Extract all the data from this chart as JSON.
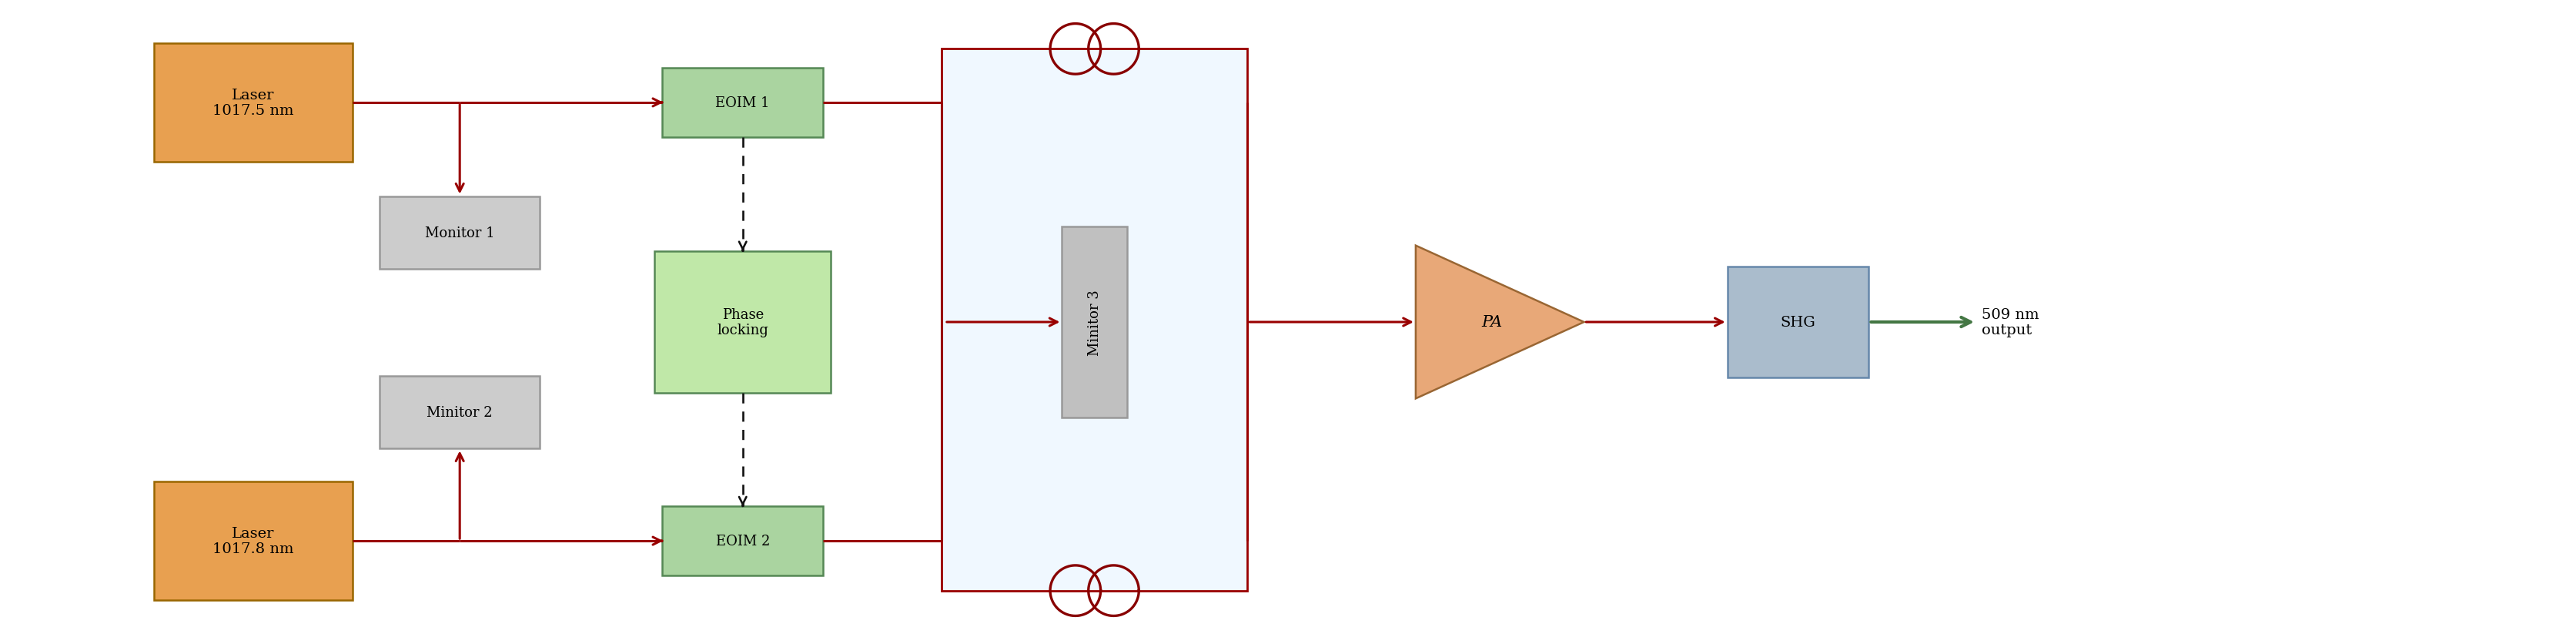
{
  "fig_width": 33.46,
  "fig_height": 8.37,
  "bg_color": "#ffffff",
  "line_color": "#990000",
  "laser1_label": "Laser\n1017.5 nm",
  "laser2_label": "Laser\n1017.8 nm",
  "monitor1_label": "Monitor 1",
  "monitor2_label": "Minitor 2",
  "eoim1_label": "EOIM 1",
  "eoim2_label": "EOIM 2",
  "phase_label": "Phase\nlocking",
  "monitor3_label": "Minitor 3",
  "pa_label": "PA",
  "shg_label": "SHG",
  "output_label": "509 nm\noutput",
  "laser_color": "#e8a050",
  "laser_edge": "#996600",
  "eoim_color": "#aad4a0",
  "eoim_edge": "#558855",
  "phase_color": "#c0e8a8",
  "phase_edge": "#558855",
  "monitor_color": "#cccccc",
  "monitor_edge": "#999999",
  "monitor3_color": "#c0c0c0",
  "monitor3_edge": "#999999",
  "pa_color": "#e8a878",
  "pa_edge": "#996633",
  "shg_color": "#aabccc",
  "shg_edge": "#6688aa",
  "green_arrow": "#447744",
  "coil_color": "#880000",
  "loop_bg": "#f0f8ff"
}
